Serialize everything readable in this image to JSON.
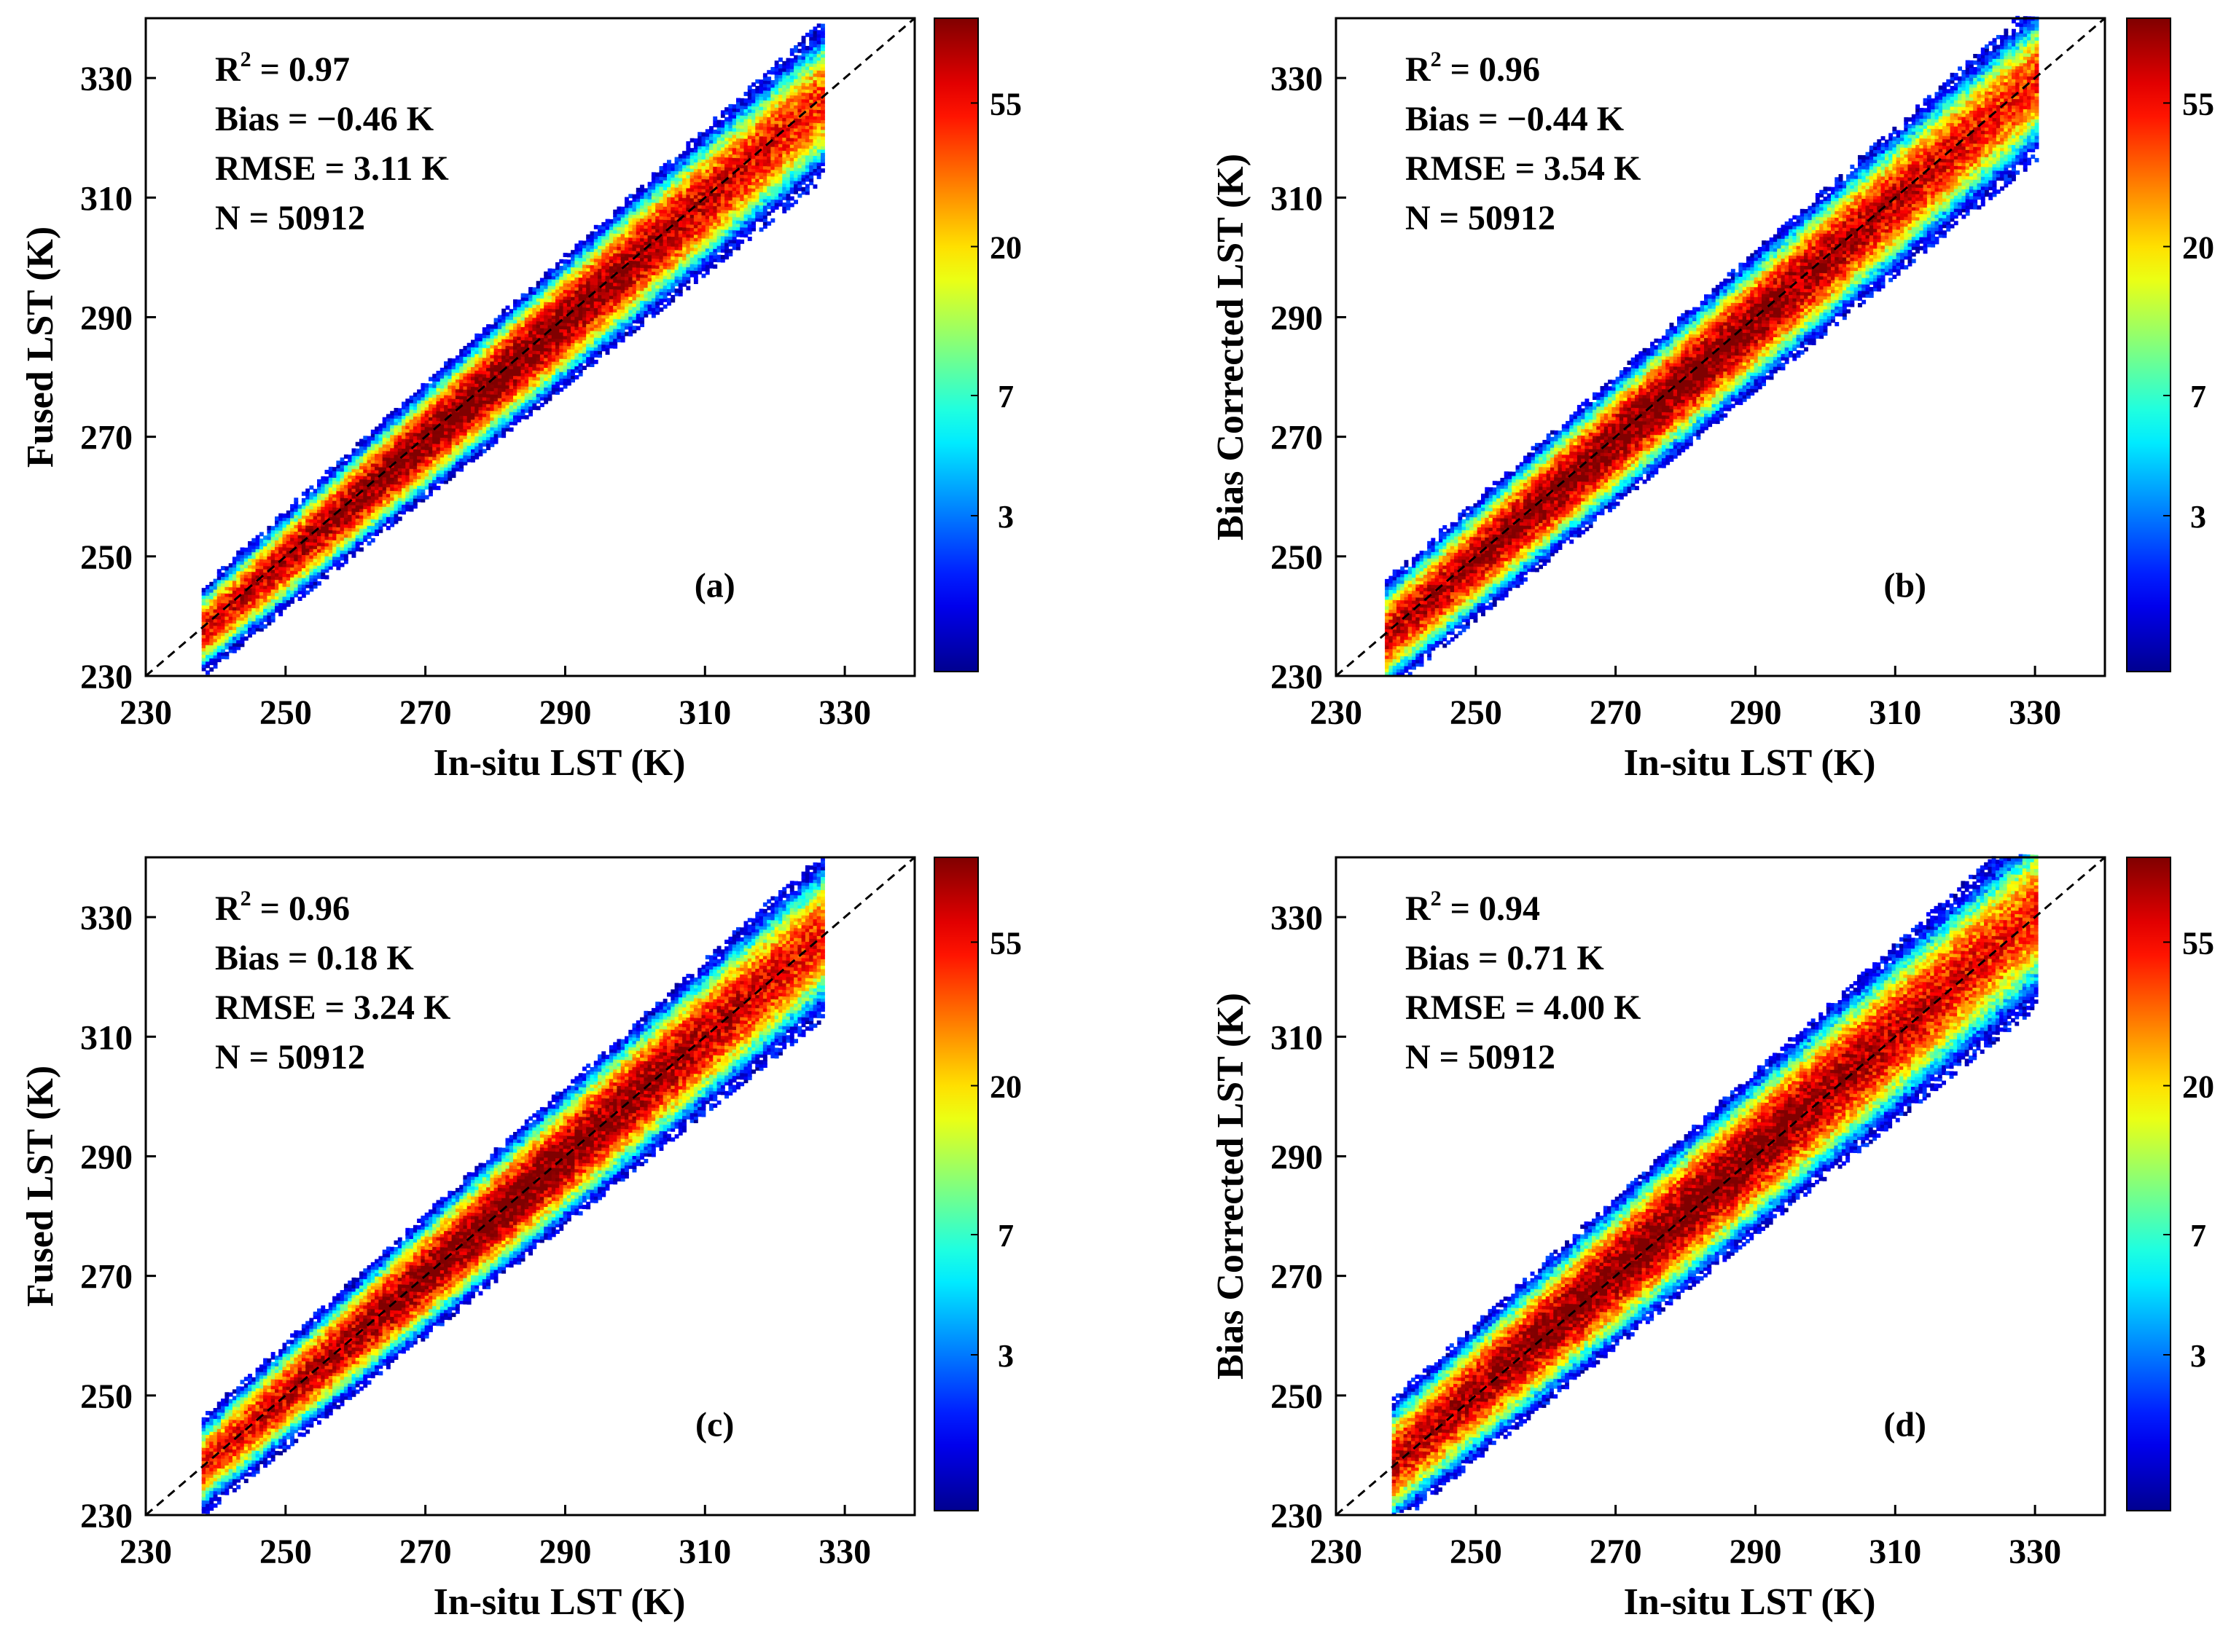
{
  "figure": {
    "panels": [
      "a",
      "b",
      "c",
      "d"
    ]
  },
  "colorbar": {
    "tick_labels": [
      "3",
      "7",
      "20",
      "55"
    ],
    "tick_values": [
      3,
      7,
      20,
      55
    ],
    "range": [
      1,
      100
    ],
    "scale": "log",
    "colormap": "jet",
    "colors": [
      "#00008f",
      "#0000ff",
      "#00ffff",
      "#ffff00",
      "#ff0000",
      "#800000"
    ]
  },
  "chart_data": [
    {
      "id": "a",
      "type": "heatmap",
      "panel_label": "(a)",
      "xlabel": "In-situ LST (K)",
      "ylabel": "Fused LST (K)",
      "xlim": [
        230,
        340
      ],
      "ylim": [
        230,
        340
      ],
      "xticks": [
        230,
        250,
        270,
        290,
        310,
        330
      ],
      "yticks": [
        230,
        250,
        270,
        290,
        310,
        330
      ],
      "xtick_labels": [
        "230",
        "250",
        "270",
        "290",
        "310",
        "330"
      ],
      "ytick_labels": [
        "230",
        "250",
        "270",
        "290",
        "310",
        "330"
      ],
      "reference_line": "1:1 dashed",
      "stats": {
        "r2_label": "R",
        "r2_exp": "2",
        "r2_value": " = 0.97",
        "bias": "Bias = −0.46 K",
        "rmse": "RMSE = 3.11 K",
        "n": "N = 50912"
      },
      "density": {
        "x_range": [
          238,
          327
        ],
        "slope": 1.0,
        "intercept": -0.46,
        "spread_low": 2.4,
        "spread_high": 4.2,
        "peak_center": 278,
        "peak_width": 40
      }
    },
    {
      "id": "b",
      "type": "heatmap",
      "panel_label": "(b)",
      "xlabel": "In-situ LST (K)",
      "ylabel": "Bias Corrected LST (K)",
      "xlim": [
        230,
        340
      ],
      "ylim": [
        230,
        340
      ],
      "xticks": [
        230,
        250,
        270,
        290,
        310,
        330
      ],
      "yticks": [
        230,
        250,
        270,
        290,
        310,
        330
      ],
      "xtick_labels": [
        "230",
        "250",
        "270",
        "290",
        "310",
        "330"
      ],
      "ytick_labels": [
        "230",
        "250",
        "270",
        "290",
        "310",
        "330"
      ],
      "reference_line": "1:1 dashed",
      "stats": {
        "r2_label": "R",
        "r2_exp": "2",
        "r2_value": " = 0.96",
        "bias": "Bias = −0.44 K",
        "rmse": "RMSE = 3.54 K",
        "n": "N = 50912"
      },
      "density": {
        "x_range": [
          237,
          330
        ],
        "slope": 1.0,
        "intercept": -0.44,
        "spread_low": 3.0,
        "spread_high": 4.2,
        "peak_center": 275,
        "peak_width": 45
      }
    },
    {
      "id": "c",
      "type": "heatmap",
      "panel_label": "(c)",
      "xlabel": "In-situ LST (K)",
      "ylabel": "Fused LST (K)",
      "xlim": [
        230,
        340
      ],
      "ylim": [
        230,
        340
      ],
      "xticks": [
        230,
        250,
        270,
        290,
        310,
        330
      ],
      "yticks": [
        230,
        250,
        270,
        290,
        310,
        330
      ],
      "xtick_labels": [
        "230",
        "250",
        "270",
        "290",
        "310",
        "330"
      ],
      "ytick_labels": [
        "230",
        "250",
        "270",
        "290",
        "310",
        "330"
      ],
      "reference_line": "1:1 dashed",
      "stats": {
        "r2_label": "R",
        "r2_exp": "2",
        "r2_value": " = 0.96",
        "bias": "Bias = 0.18 K",
        "rmse": "RMSE = 3.24 K",
        "n": "N = 50912"
      },
      "density": {
        "x_range": [
          238,
          327
        ],
        "slope": 1.0,
        "intercept": 0.18,
        "spread_low": 2.6,
        "spread_high": 4.4,
        "peak_center": 282,
        "peak_width": 40
      }
    },
    {
      "id": "d",
      "type": "heatmap",
      "panel_label": "(d)",
      "xlabel": "In-situ LST (K)",
      "ylabel": "Bias Corrected LST (K)",
      "xlim": [
        230,
        340
      ],
      "ylim": [
        230,
        340
      ],
      "xticks": [
        230,
        250,
        270,
        290,
        310,
        330
      ],
      "yticks": [
        230,
        250,
        270,
        290,
        310,
        330
      ],
      "xtick_labels": [
        "230",
        "250",
        "270",
        "290",
        "310",
        "330"
      ],
      "ytick_labels": [
        "230",
        "250",
        "270",
        "290",
        "310",
        "330"
      ],
      "reference_line": "1:1 dashed",
      "stats": {
        "r2_label": "R",
        "r2_exp": "2",
        "r2_value": " = 0.94",
        "bias": "Bias = 0.71 K",
        "rmse": "RMSE = 4.00 K",
        "n": "N = 50912"
      },
      "density": {
        "x_range": [
          238,
          330
        ],
        "slope": 1.0,
        "intercept": 0.71,
        "spread_low": 3.4,
        "spread_high": 5.0,
        "peak_center": 276,
        "peak_width": 45
      }
    }
  ]
}
